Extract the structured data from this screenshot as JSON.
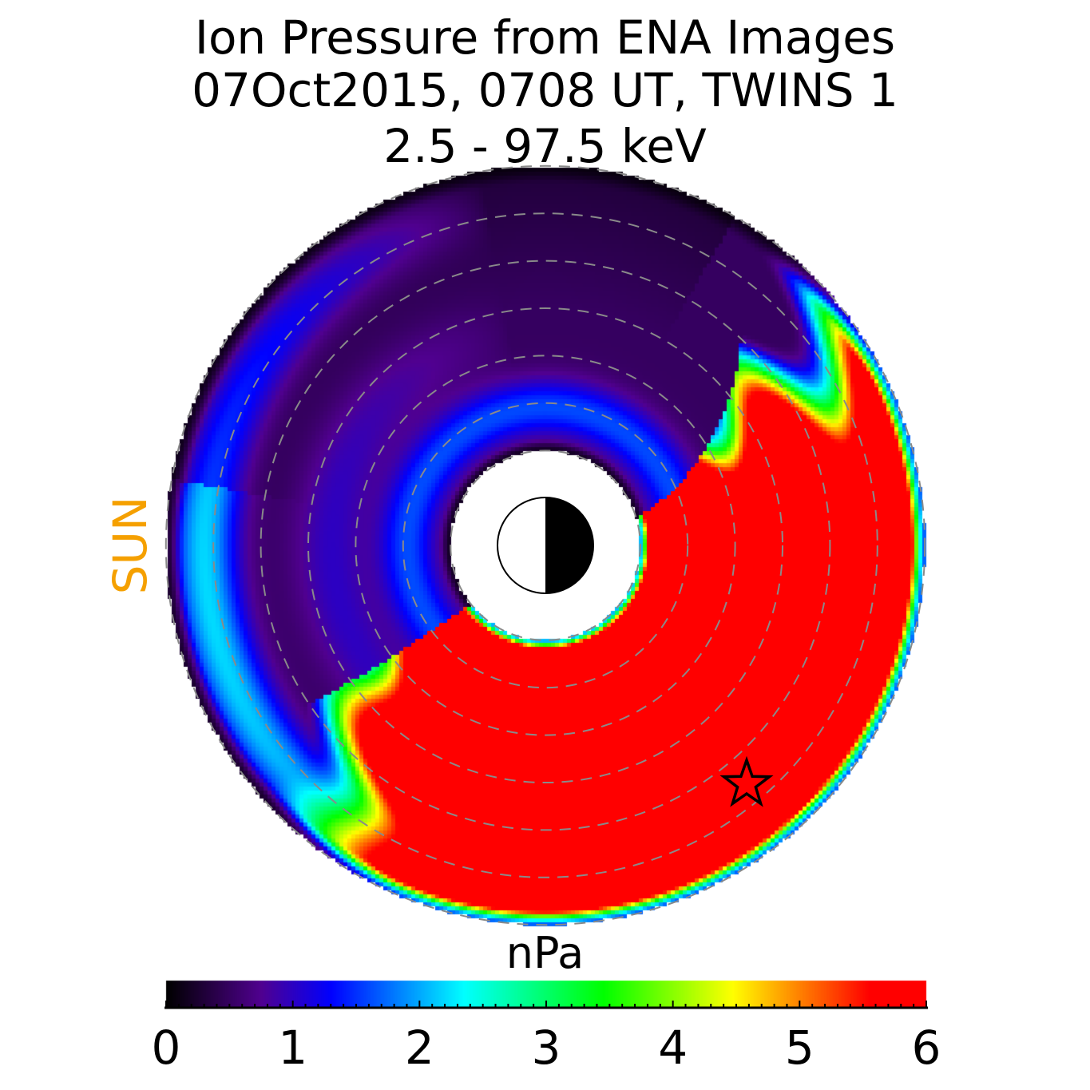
{
  "title": {
    "line1": "Ion Pressure from  ENA Images",
    "line2": "07Oct2015, 0708 UT,  TWINS 1",
    "line3": "2.5 - 97.5 keV"
  },
  "sun_label": "SUN",
  "sun_color": "#f5a000",
  "chart_data": {
    "type": "heatmap",
    "projection": "polar (equatorial plane, Sun to the left)",
    "colorbar": {
      "label": "nPa",
      "range": [
        0,
        6
      ],
      "ticks": [
        "0",
        "1",
        "2",
        "3",
        "4",
        "5",
        "6"
      ],
      "minor_tick_step": 0.1,
      "colormap": [
        "#000000",
        "#500090",
        "#0000ff",
        "#00ffff",
        "#00ff00",
        "#ffff00",
        "#ff8000",
        "#ff0000"
      ]
    },
    "grid": "dashed circles",
    "high_pressure_region": "nightside / dusk (right and lower half), saturated at 6 nPa",
    "low_pressure_region": "dayside (upper left), 0 - 1.5 nPa",
    "markers": [
      {
        "type": "star",
        "meaning": "spacecraft position"
      }
    ],
    "earth_symbol": "day/night circle at centre"
  }
}
